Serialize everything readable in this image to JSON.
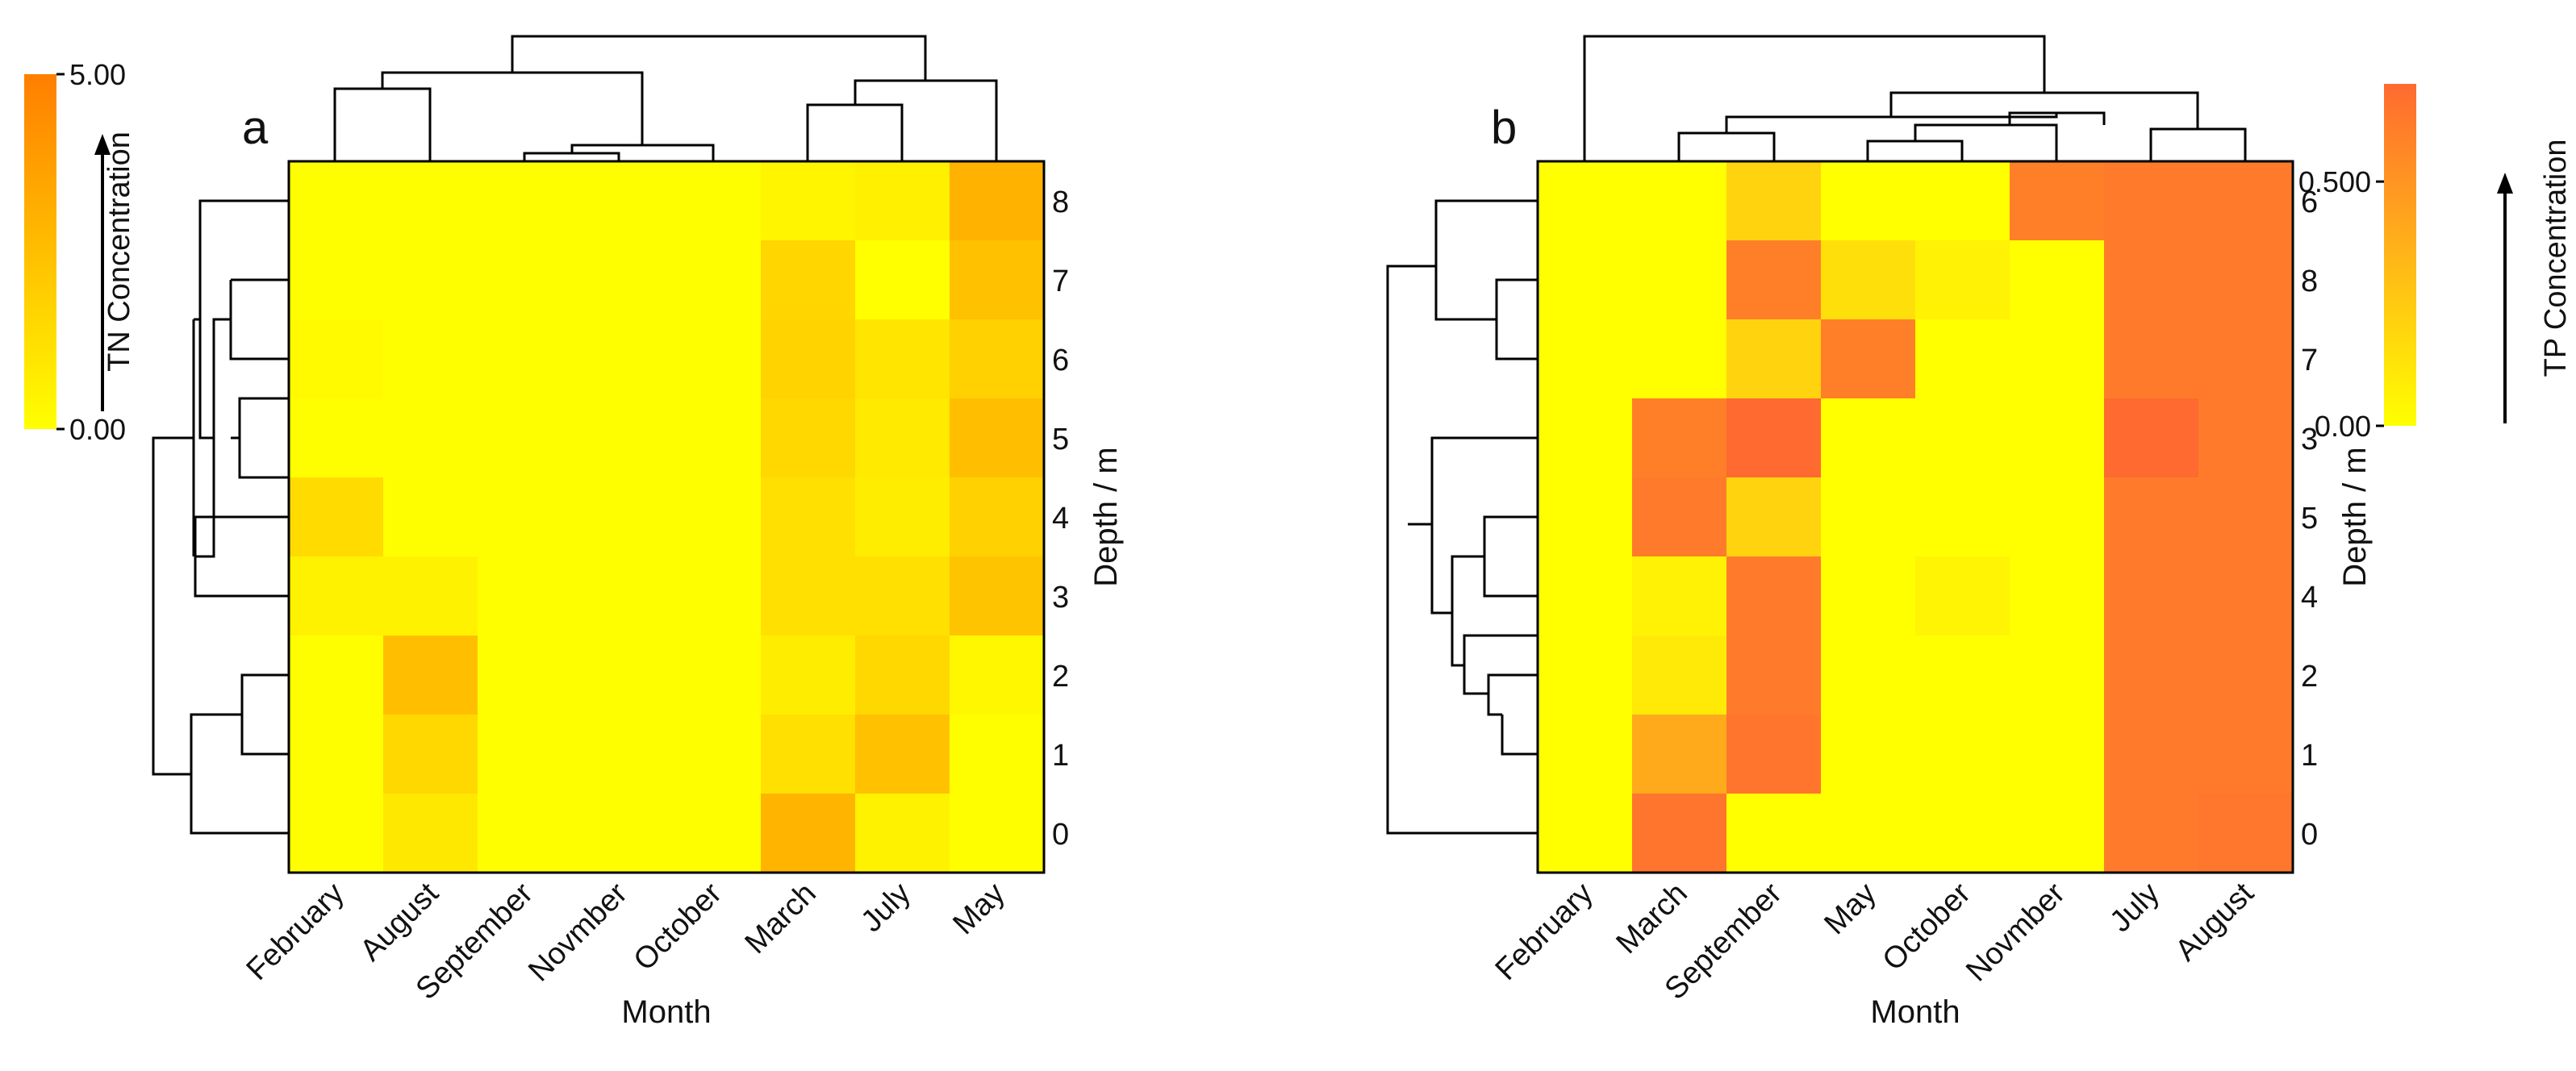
{
  "figure": {
    "panels": [
      "a",
      "b"
    ]
  },
  "chart_data": [
    {
      "panel": "a",
      "type": "heatmap",
      "title": "",
      "panel_label": "a",
      "xlabel": "Month",
      "ylabel": "Depth / m",
      "x_categories": [
        "February",
        "August",
        "September",
        "Novmber",
        "October",
        "March",
        "July",
        "May"
      ],
      "y_categories": [
        "8",
        "7",
        "6",
        "5",
        "4",
        "3",
        "2",
        "1",
        "0"
      ],
      "values": [
        [
          0.05,
          0.05,
          0.05,
          0.05,
          0.05,
          0.4,
          0.6,
          3.0
        ],
        [
          0.05,
          0.05,
          0.05,
          0.05,
          0.05,
          1.6,
          0.0,
          2.4
        ],
        [
          0.2,
          0.05,
          0.05,
          0.05,
          0.05,
          1.7,
          1.0,
          1.8
        ],
        [
          0.05,
          0.05,
          0.05,
          0.05,
          0.05,
          1.5,
          0.8,
          2.5
        ],
        [
          1.4,
          0.05,
          0.05,
          0.05,
          0.05,
          1.2,
          0.7,
          1.8
        ],
        [
          0.5,
          0.5,
          0.05,
          0.05,
          0.05,
          1.2,
          1.2,
          2.3
        ],
        [
          0.05,
          2.5,
          0.05,
          0.05,
          0.05,
          0.7,
          1.5,
          0.3
        ],
        [
          0.05,
          1.5,
          0.05,
          0.05,
          0.05,
          1.2,
          2.4,
          0.05
        ],
        [
          0.05,
          0.9,
          0.05,
          0.05,
          0.05,
          2.9,
          0.5,
          0.05
        ]
      ],
      "colorbar": {
        "label": "TN Concentration",
        "range": [
          0.0,
          5.0
        ],
        "ticks": [
          {
            "value": 0.0,
            "label": "0.00"
          },
          {
            "value": 5.0,
            "label": "5.00"
          }
        ],
        "position": "left",
        "colors": [
          "#ffff00",
          "#ff7e00"
        ]
      },
      "dendrograms": [
        "top",
        "left"
      ]
    },
    {
      "panel": "b",
      "type": "heatmap",
      "title": "",
      "panel_label": "b",
      "xlabel": "Month",
      "ylabel": "Depth / m",
      "x_categories": [
        "February",
        "March",
        "September",
        "May",
        "October",
        "Novmber",
        "July",
        "August"
      ],
      "y_categories": [
        "6",
        "8",
        "7",
        "3",
        "5",
        "4",
        "2",
        "1",
        "0"
      ],
      "values": [
        [
          0.0,
          0.0,
          0.2,
          0.0,
          0.0,
          0.6,
          0.62,
          0.62
        ],
        [
          0.0,
          0.0,
          0.6,
          0.15,
          0.06,
          0.0,
          0.62,
          0.62
        ],
        [
          0.0,
          0.0,
          0.2,
          0.6,
          0.0,
          0.0,
          0.62,
          0.62
        ],
        [
          0.0,
          0.6,
          0.7,
          0.0,
          0.0,
          0.0,
          0.7,
          0.62
        ],
        [
          0.0,
          0.62,
          0.2,
          0.0,
          0.0,
          0.0,
          0.62,
          0.62
        ],
        [
          0.0,
          0.06,
          0.62,
          0.0,
          0.05,
          0.0,
          0.62,
          0.62
        ],
        [
          0.0,
          0.1,
          0.62,
          0.0,
          0.0,
          0.0,
          0.62,
          0.62
        ],
        [
          0.0,
          0.4,
          0.65,
          0.0,
          0.0,
          0.0,
          0.62,
          0.62
        ],
        [
          0.0,
          0.65,
          0.0,
          0.0,
          0.0,
          0.0,
          0.62,
          0.64
        ]
      ],
      "colorbar": {
        "label": "TP Concentration",
        "range": [
          0.0,
          0.7
        ],
        "ticks": [
          {
            "value": 0.0,
            "label": "0.00"
          },
          {
            "value": 0.5,
            "label": "0.500"
          }
        ],
        "position": "right",
        "colors": [
          "#ffff00",
          "#ff6a30"
        ]
      },
      "dendrograms": [
        "top",
        "left"
      ]
    }
  ]
}
